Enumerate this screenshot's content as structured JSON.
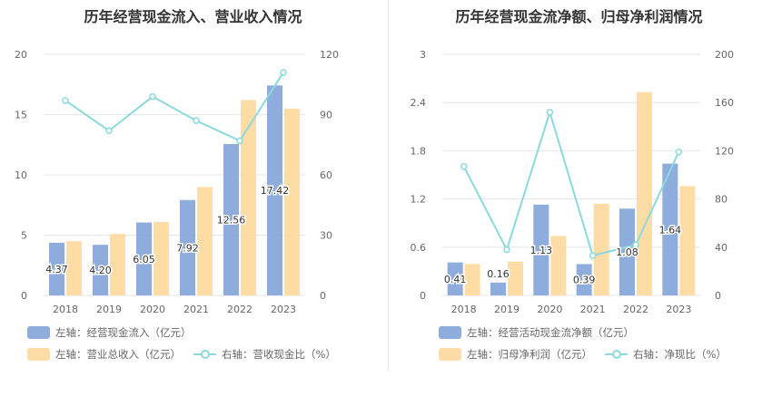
{
  "colors": {
    "blue": "#8eaddc",
    "orange": "#fedca5",
    "line": "#8ad9dd",
    "grid": "#e6e6e6"
  },
  "chart_data": [
    {
      "type": "bar",
      "title": "历年经营现金流入、营业收入情况",
      "categories": [
        "2018",
        "2019",
        "2020",
        "2021",
        "2022",
        "2023"
      ],
      "ylim_left": [
        0,
        20
      ],
      "yticks_left": [
        "0",
        "5",
        "10",
        "15",
        "20"
      ],
      "ylim_right": [
        0,
        120
      ],
      "yticks_right": [
        "0",
        "30",
        "60",
        "90",
        "120"
      ],
      "series": [
        {
          "name": "左轴：经营现金流入（亿元）",
          "axis": "left",
          "kind": "bar",
          "values": [
            4.37,
            4.2,
            6.05,
            7.92,
            12.56,
            17.42
          ],
          "labels": [
            "4.37",
            "4.20",
            "6.05",
            "7.92",
            "12.56",
            "17.42"
          ]
        },
        {
          "name": "左轴：营业总收入（亿元）",
          "axis": "left",
          "kind": "bar",
          "values": [
            4.5,
            5.1,
            6.1,
            9.0,
            16.2,
            15.5
          ]
        },
        {
          "name": "右轴：营收现金比（%）",
          "axis": "right",
          "kind": "line",
          "values": [
            97,
            82,
            99,
            87,
            77,
            111
          ]
        }
      ]
    },
    {
      "type": "bar",
      "title": "历年经营现金流净额、归母净利润情况",
      "categories": [
        "2018",
        "2019",
        "2020",
        "2021",
        "2022",
        "2023"
      ],
      "ylim_left": [
        0,
        3
      ],
      "yticks_left": [
        "0",
        "0.6",
        "1.2",
        "1.8",
        "2.4",
        "3"
      ],
      "ylim_right": [
        0,
        200
      ],
      "yticks_right": [
        "0",
        "40",
        "80",
        "120",
        "160",
        "200"
      ],
      "series": [
        {
          "name": "左轴：经营活动现金流净额（亿元）",
          "axis": "left",
          "kind": "bar",
          "values": [
            0.41,
            0.16,
            1.13,
            0.39,
            1.08,
            1.64
          ],
          "labels": [
            "0.41",
            "0.16",
            "1.13",
            "0.39",
            "1.08",
            "1.64"
          ]
        },
        {
          "name": "左轴：归母净利润（亿元）",
          "axis": "left",
          "kind": "bar",
          "values": [
            0.39,
            0.42,
            0.74,
            1.14,
            2.53,
            1.36
          ]
        },
        {
          "name": "右轴：净现比（%）",
          "axis": "right",
          "kind": "line",
          "values": [
            107,
            38,
            152,
            33,
            42,
            119
          ]
        }
      ]
    }
  ]
}
